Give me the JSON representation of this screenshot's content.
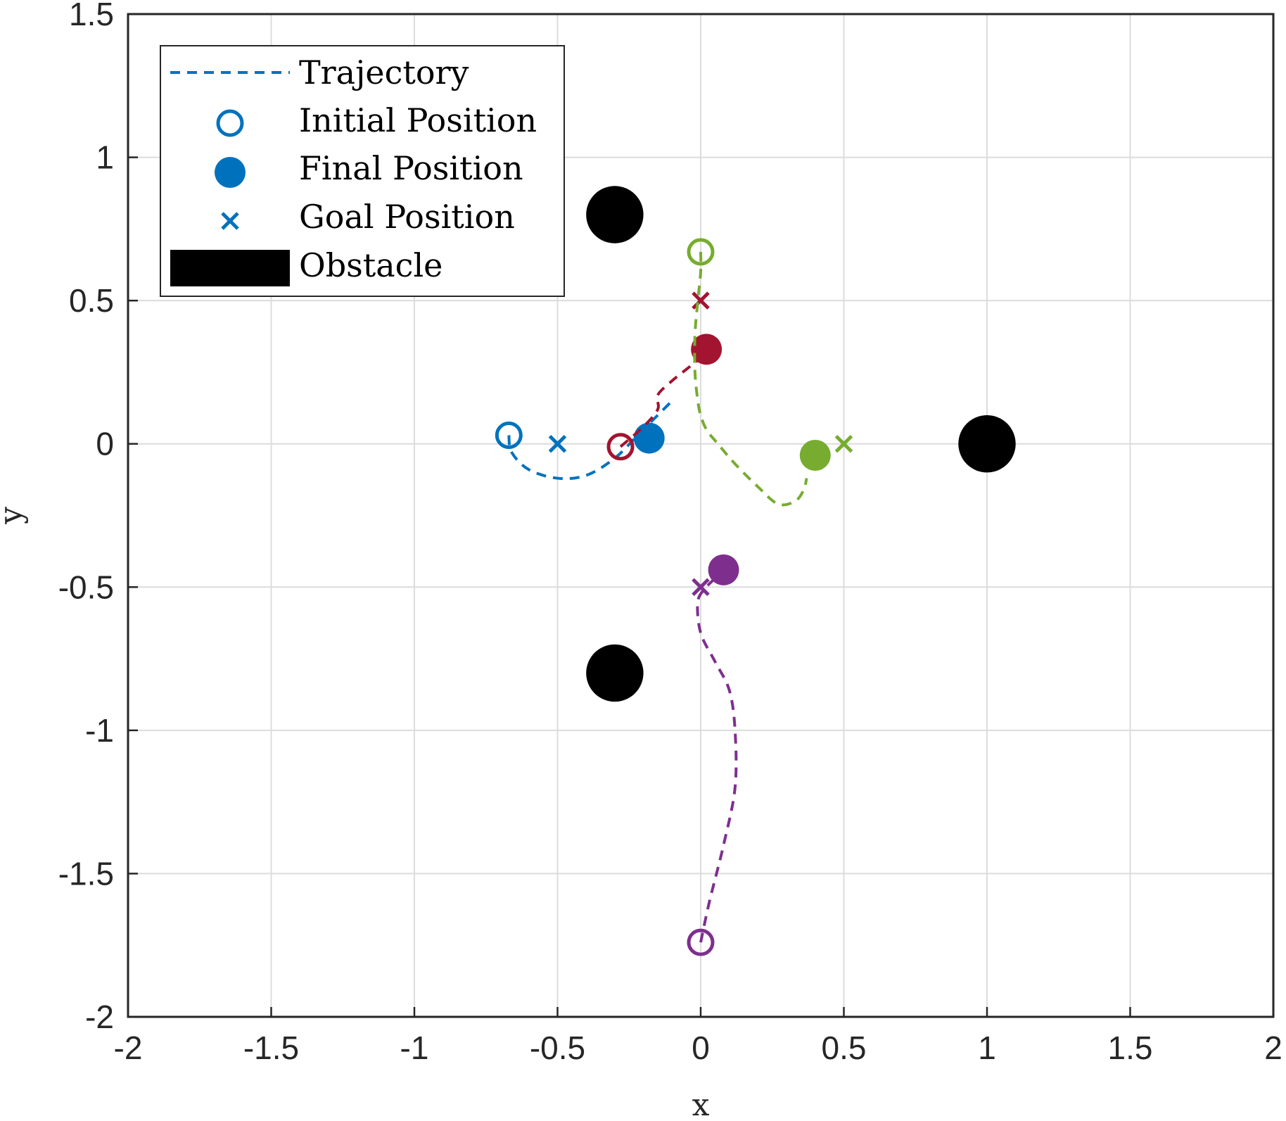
{
  "chart_data": {
    "type": "scatter",
    "title": "",
    "xlabel": "x",
    "ylabel": "y",
    "xlim": [
      -2,
      2
    ],
    "ylim": [
      -2,
      1.5
    ],
    "xticks": [
      -2,
      -1.5,
      -1,
      -0.5,
      0,
      0.5,
      1,
      1.5,
      2
    ],
    "yticks": [
      -2,
      -1.5,
      -1,
      -0.5,
      0,
      0.5,
      1,
      1.5
    ],
    "xtick_labels": [
      "-2",
      "-1.5",
      "-1",
      "-0.5",
      "0",
      "0.5",
      "1",
      "1.5",
      "2"
    ],
    "ytick_labels": [
      "-2",
      "-1.5",
      "-1",
      "-0.5",
      "0",
      "0.5",
      "1",
      "1.5"
    ],
    "grid": true,
    "legend": {
      "placement": "top-left",
      "entries": [
        "Trajectory",
        "Initial Position",
        "Final Position",
        "Goal Position",
        "Obstacle"
      ]
    },
    "obstacles": [
      {
        "x": -0.3,
        "y": 0.8
      },
      {
        "x": -0.3,
        "y": -0.8
      },
      {
        "x": 1.0,
        "y": 0.0
      }
    ],
    "series": [
      {
        "name": "agent-blue",
        "color": "#0072BD",
        "initial": [
          -0.67,
          0.03
        ],
        "final": [
          -0.18,
          0.02
        ],
        "goal": [
          -0.5,
          0.0
        ],
        "trajectory": [
          [
            -0.67,
            0.03
          ],
          [
            -0.66,
            -0.03
          ],
          [
            -0.6,
            -0.09
          ],
          [
            -0.5,
            -0.12
          ],
          [
            -0.4,
            -0.11
          ],
          [
            -0.3,
            -0.05
          ],
          [
            -0.22,
            0.03
          ],
          [
            -0.15,
            0.1
          ],
          [
            -0.1,
            0.15
          ]
        ]
      },
      {
        "name": "agent-red",
        "color": "#A2142F",
        "initial": [
          -0.28,
          -0.01
        ],
        "final": [
          0.02,
          0.33
        ],
        "goal": [
          0.0,
          0.5
        ],
        "trajectory": [
          [
            -0.28,
            -0.01
          ],
          [
            -0.2,
            0.06
          ],
          [
            -0.15,
            0.12
          ],
          [
            -0.15,
            0.17
          ],
          [
            -0.1,
            0.22
          ],
          [
            -0.05,
            0.26
          ],
          [
            0.0,
            0.3
          ]
        ]
      },
      {
        "name": "agent-green",
        "color": "#77AC30",
        "initial": [
          0.0,
          0.67
        ],
        "final": [
          0.4,
          -0.04
        ],
        "goal": [
          0.5,
          0.0
        ],
        "trajectory": [
          [
            0.0,
            0.67
          ],
          [
            0.0,
            0.6
          ],
          [
            -0.01,
            0.5
          ],
          [
            -0.02,
            0.38
          ],
          [
            -0.02,
            0.25
          ],
          [
            -0.01,
            0.15
          ],
          [
            0.0,
            0.1
          ],
          [
            0.02,
            0.05
          ],
          [
            0.06,
            0.0
          ],
          [
            0.12,
            -0.07
          ],
          [
            0.2,
            -0.15
          ],
          [
            0.27,
            -0.21
          ],
          [
            0.33,
            -0.2
          ],
          [
            0.36,
            -0.16
          ],
          [
            0.37,
            -0.12
          ]
        ]
      },
      {
        "name": "agent-purple",
        "color": "#7E2F8E",
        "initial": [
          0.0,
          -1.74
        ],
        "final": [
          0.08,
          -0.44
        ],
        "goal": [
          0.0,
          -0.5
        ],
        "trajectory": [
          [
            0.0,
            -1.74
          ],
          [
            0.03,
            -1.6
          ],
          [
            0.08,
            -1.4
          ],
          [
            0.12,
            -1.2
          ],
          [
            0.12,
            -1.0
          ],
          [
            0.1,
            -0.86
          ],
          [
            0.05,
            -0.76
          ],
          [
            0.0,
            -0.66
          ],
          [
            -0.01,
            -0.55
          ],
          [
            0.02,
            -0.5
          ],
          [
            0.05,
            -0.47
          ]
        ]
      }
    ]
  }
}
